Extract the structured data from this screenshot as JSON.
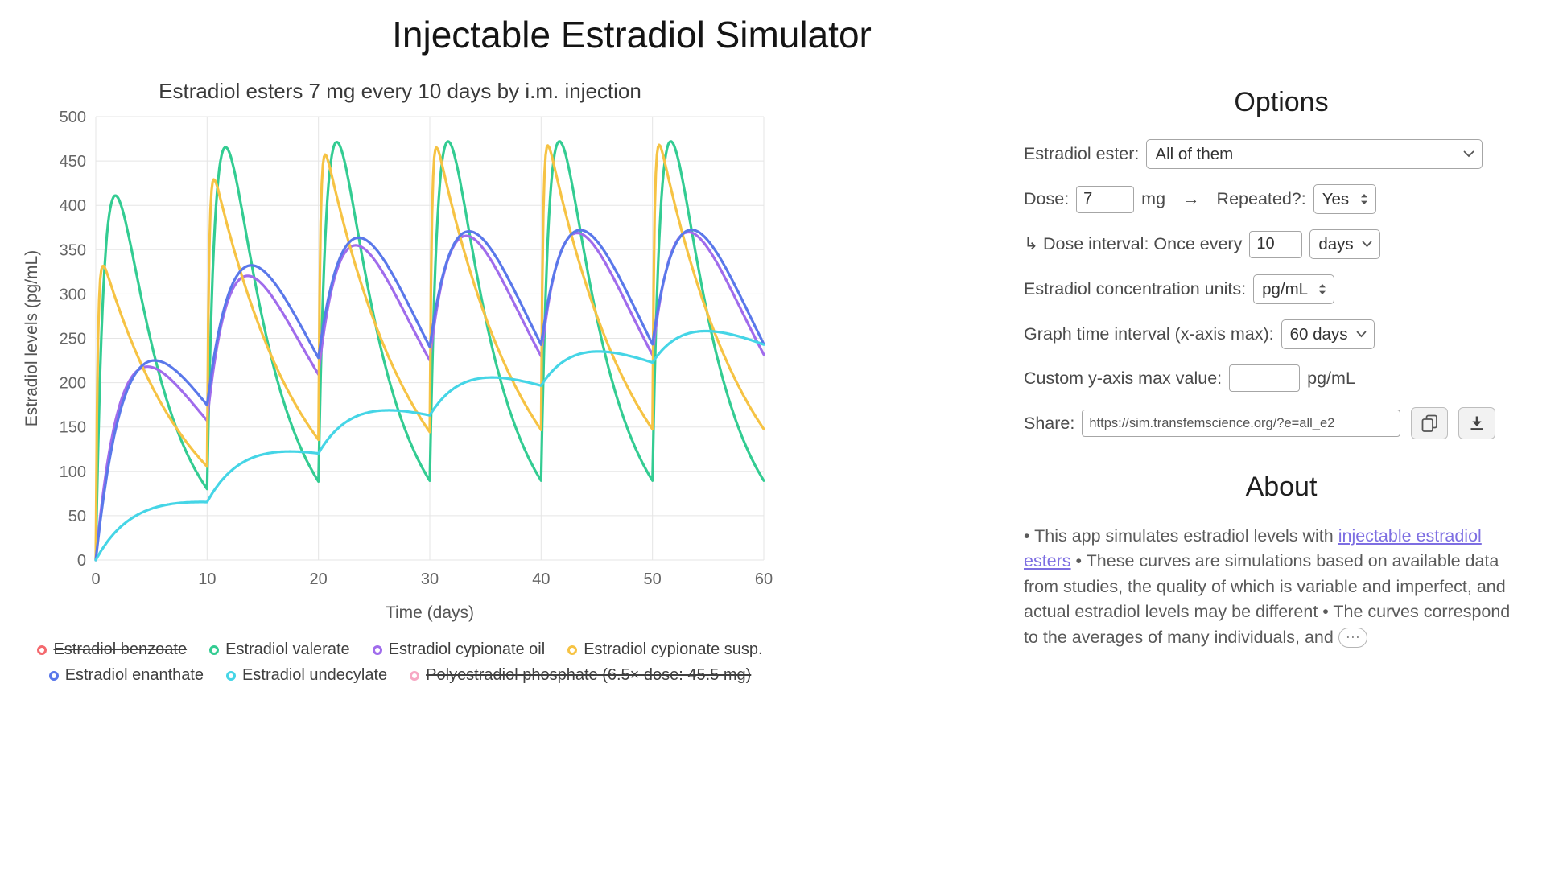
{
  "title": "Injectable Estradiol Simulator",
  "colors": {
    "link": "#7d6ee2",
    "grid": "#e5e5e5",
    "tick_text": "#666666",
    "axis_title_text": "#555555"
  },
  "options": {
    "heading": "Options",
    "ester": {
      "label": "Estradiol ester:",
      "value": "All of them"
    },
    "dose": {
      "label": "Dose:",
      "value": "7",
      "unit": "mg"
    },
    "arrow": "→",
    "repeated": {
      "label": "Repeated?:",
      "value": "Yes"
    },
    "interval": {
      "label": "↳ Dose interval: Once every",
      "value": "10",
      "unit_value": "days"
    },
    "units": {
      "label": "Estradiol concentration units:",
      "value": "pg/mL"
    },
    "graph_interval": {
      "label": "Graph time interval (x-axis max):",
      "value": "60 days"
    },
    "ymax": {
      "label": "Custom y-axis max value:",
      "value": "",
      "unit": "pg/mL"
    },
    "share": {
      "label": "Share:",
      "url": "https://sim.transfemscience.org/?e=all_e2"
    }
  },
  "about": {
    "heading": "About",
    "p1": "• This app simulates estradiol levels with ",
    "link_text": "injectable estradiol esters",
    "p2": " • These curves are simulations based on available data from studies, the quality of which is variable and imperfect, and actual estradiol levels may be different • The curves correspond to the averages of many individuals, and ",
    "ellipsis": "…"
  },
  "chart_data": {
    "type": "line",
    "title": "Estradiol esters 7 mg every 10 days by i.m. injection",
    "xlabel": "Time (days)",
    "ylabel": "Estradiol levels (pg/mL)",
    "xlim": [
      0,
      60
    ],
    "ylim": [
      0,
      500
    ],
    "x_ticks": [
      0,
      10,
      20,
      30,
      40,
      50,
      60
    ],
    "y_ticks": [
      0,
      50,
      100,
      150,
      200,
      250,
      300,
      350,
      400,
      450,
      500
    ],
    "grid": true,
    "legend_position": "bottom",
    "dose_days": [
      0,
      10,
      20,
      30,
      40,
      50
    ],
    "series": [
      {
        "key": "estradiol-benzoate",
        "label": "Estradiol benzoate",
        "color": "#f4696e",
        "hidden": true
      },
      {
        "key": "estradiol-valerate",
        "label": "Estradiol valerate",
        "color": "#33cc92",
        "hidden": false,
        "model": {
          "ka": 1.15,
          "ke": 0.225,
          "scale": 760
        },
        "peaks_approx": [
          [
            1.9,
            410
          ],
          [
            11.9,
            462
          ],
          [
            21.9,
            467
          ],
          [
            31.9,
            467
          ],
          [
            41.9,
            467
          ],
          [
            51.9,
            467
          ]
        ],
        "troughs_approx": [
          [
            10,
            80
          ],
          [
            20,
            88
          ],
          [
            30,
            89
          ],
          [
            40,
            89
          ],
          [
            50,
            89
          ]
        ],
        "end_value_approx": 90
      },
      {
        "key": "estradiol-cypionate-oil",
        "label": "Estradiol cypionate oil",
        "color": "#a06cec",
        "hidden": false,
        "model": {
          "ka": 0.35,
          "ke": 0.12,
          "scale": 580
        },
        "peaks_approx": [
          [
            4.6,
            216
          ],
          [
            14.6,
            312
          ],
          [
            24.6,
            344
          ],
          [
            34.6,
            353
          ],
          [
            44.6,
            356
          ],
          [
            54.6,
            358
          ]
        ],
        "troughs_approx": [
          [
            10,
            150
          ],
          [
            20,
            200
          ],
          [
            30,
            220
          ],
          [
            40,
            227
          ],
          [
            50,
            229
          ]
        ],
        "end_value_approx": 226
      },
      {
        "key": "estradiol-cypionate-susp",
        "label": "Estradiol cypionate susp.",
        "color": "#f6c344",
        "hidden": false,
        "model": {
          "ka": 6.0,
          "ke": 0.125,
          "scale": 368
        },
        "peaks_approx": [
          [
            0.7,
            333
          ],
          [
            10.7,
            430
          ],
          [
            20.7,
            455
          ],
          [
            30.7,
            461
          ],
          [
            40.7,
            463
          ],
          [
            50.7,
            464
          ]
        ],
        "troughs_approx": [
          [
            10,
            106
          ],
          [
            20,
            135
          ],
          [
            30,
            143
          ],
          [
            40,
            146
          ],
          [
            50,
            147
          ]
        ],
        "end_value_approx": 147
      },
      {
        "key": "estradiol-enanthate",
        "label": "Estradiol enanthate",
        "color": "#5a78ea",
        "hidden": false,
        "model": {
          "ka": 0.21,
          "ke": 0.17,
          "scale": 2900
        },
        "peaks_approx": [
          [
            5.5,
            225
          ],
          [
            15.4,
            322
          ],
          [
            25.4,
            349
          ],
          [
            35.4,
            354
          ],
          [
            45.4,
            356
          ],
          [
            55.4,
            356
          ]
        ],
        "troughs_approx": [
          [
            10,
            185
          ],
          [
            20,
            236
          ],
          [
            30,
            241
          ],
          [
            40,
            242
          ],
          [
            50,
            242
          ]
        ],
        "end_value_approx": 245
      },
      {
        "key": "estradiol-undecylate",
        "label": "Estradiol undecylate",
        "color": "#45d5e6",
        "hidden": false,
        "model": {
          "ka": 0.28,
          "ke": 0.025,
          "scale": 91
        },
        "peaks_approx": [
          [
            8.5,
            68
          ],
          [
            16,
            126
          ],
          [
            26,
            170
          ],
          [
            36,
            203
          ],
          [
            46,
            228
          ],
          [
            56,
            255
          ]
        ],
        "troughs_approx": [
          [
            10.7,
            66
          ],
          [
            20.8,
            121
          ],
          [
            30.8,
            164
          ],
          [
            40.8,
            198
          ],
          [
            50.8,
            222
          ]
        ],
        "end_value_approx": 248
      },
      {
        "key": "polyestradiol-phosphate",
        "label": "Polyestradiol phosphate (6.5× dose: 45.5 mg)",
        "color": "#f7a8c4",
        "hidden": true
      }
    ]
  }
}
